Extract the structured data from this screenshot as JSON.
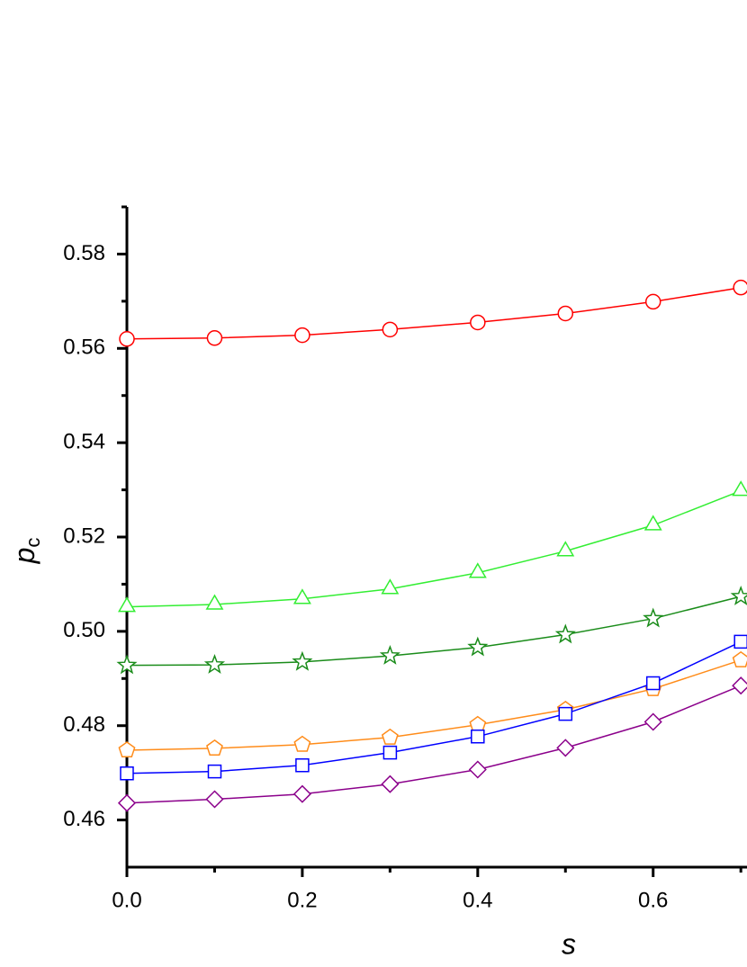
{
  "chart_data": {
    "type": "line",
    "xlabel": "s",
    "ylabel": "p",
    "ylabel_sub": "c",
    "x": [
      0,
      0.1,
      0.2,
      0.3,
      0.4,
      0.5,
      0.6,
      0.7
    ],
    "series": [
      {
        "color": "#ff0000",
        "marker": "circle",
        "values": [
          0.562,
          0.5622,
          0.5628,
          0.564,
          0.5655,
          0.5674,
          0.5699,
          0.5729
        ]
      },
      {
        "color": "#33ee33",
        "marker": "triangle",
        "values": [
          0.5052,
          0.5057,
          0.5069,
          0.509,
          0.5124,
          0.517,
          0.5225,
          0.5298
        ]
      },
      {
        "color": "#1a8c1a",
        "marker": "star",
        "values": [
          0.4928,
          0.4929,
          0.4935,
          0.4948,
          0.4966,
          0.4993,
          0.5027,
          0.5074
        ]
      },
      {
        "color": "#ff8c1a",
        "marker": "pentagon",
        "values": [
          0.4748,
          0.4752,
          0.476,
          0.4775,
          0.4802,
          0.4834,
          0.4878,
          0.4939
        ]
      },
      {
        "color": "#0000ff",
        "marker": "square",
        "values": [
          0.4699,
          0.4703,
          0.4716,
          0.4743,
          0.4777,
          0.4825,
          0.489,
          0.4978
        ]
      },
      {
        "color": "#8b008b",
        "marker": "diamond",
        "values": [
          0.4636,
          0.4644,
          0.4655,
          0.4676,
          0.4707,
          0.4753,
          0.4808,
          0.4885
        ]
      }
    ],
    "xlim": [
      0,
      0.707
    ],
    "ylim": [
      0.45,
      0.59
    ],
    "xticks": [
      {
        "value": 0,
        "label": "0.0"
      },
      0.2,
      0.4,
      0.6
    ],
    "xminor": [
      0.1,
      0.3,
      0.5,
      0.7
    ],
    "yticks": [
      0.46,
      0.48,
      {
        "value": 0.5,
        "label": "0.50"
      },
      0.52,
      0.54,
      0.56,
      0.58
    ],
    "yminor": [
      0.47,
      0.49,
      0.51,
      0.53,
      0.55,
      0.57,
      0.59
    ]
  }
}
